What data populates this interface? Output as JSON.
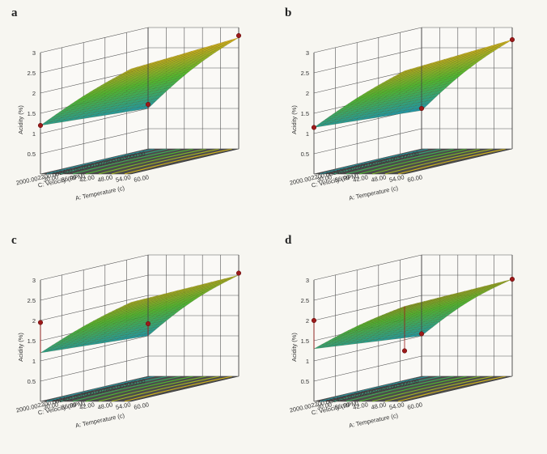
{
  "chart_data": [
    {
      "type": "surface3d",
      "panel_label": "a",
      "zlabel": "Acidity (%)",
      "xlabel": "A: Temperature (c)",
      "ylabel": "C: Velocity (RPM)",
      "x_ticks": [
        "30.00",
        "36.00",
        "42.00",
        "48.00",
        "54.00",
        "60.00"
      ],
      "y_ticks": [
        "2000.00",
        "2200.00",
        "2400.00",
        "2600.00",
        "2800.00",
        "3000.00"
      ],
      "z_ticks": [
        "0.5",
        "1",
        "1.5",
        "2",
        "2.5",
        "3"
      ],
      "xlim": [
        30,
        60
      ],
      "ylim": [
        2000,
        3000
      ],
      "zlim": [
        0,
        3
      ],
      "surface_corners": {
        "x30_y3000": 1.0,
        "x60_y3000": 2.75,
        "x30_y2000": 1.2,
        "x60_y2000": 2.6
      },
      "design_points": [
        {
          "x": 30,
          "y": 3000,
          "z": 1.1
        },
        {
          "x": 60,
          "y": 3000,
          "z": 2.8
        },
        {
          "x": 30,
          "y": 2000,
          "z": 1.2
        }
      ]
    },
    {
      "type": "surface3d",
      "panel_label": "b",
      "zlabel": "Acidity (%)",
      "xlabel": "A: Temperature (c)",
      "ylabel": "C: Velocity (RPM)",
      "x_ticks": [
        "30.00",
        "36.00",
        "42.00",
        "48.00",
        "54.00",
        "60.00"
      ],
      "y_ticks": [
        "2000.00",
        "2200.00",
        "2400.00",
        "2600.00",
        "2800.00",
        "3000.00"
      ],
      "z_ticks": [
        "0.5",
        "1",
        "1.5",
        "2",
        "2.5",
        "3"
      ],
      "xlim": [
        30,
        60
      ],
      "ylim": [
        2000,
        3000
      ],
      "zlim": [
        0,
        3
      ],
      "surface_corners": {
        "x30_y3000": 0.95,
        "x60_y3000": 2.7,
        "x30_y2000": 1.15,
        "x60_y2000": 2.55
      },
      "design_points": [
        {
          "x": 30,
          "y": 3000,
          "z": 1.0
        },
        {
          "x": 60,
          "y": 3000,
          "z": 2.7
        },
        {
          "x": 30,
          "y": 2000,
          "z": 1.15
        }
      ]
    },
    {
      "type": "surface3d",
      "panel_label": "c",
      "zlabel": "Acidity (%)",
      "xlabel": "A: Temperature (c)",
      "ylabel": "C: Velocity (RPM)",
      "x_ticks": [
        "30.00",
        "36.00",
        "42.00",
        "48.00",
        "54.00",
        "60.00"
      ],
      "y_ticks": [
        "2000.00",
        "2200.00",
        "2400.00",
        "2600.00",
        "2800.00",
        "3000.00"
      ],
      "z_ticks": [
        "0.5",
        "1",
        "1.5",
        "2",
        "2.5",
        "3"
      ],
      "xlim": [
        30,
        60
      ],
      "ylim": [
        2000,
        3000
      ],
      "zlim": [
        0,
        3
      ],
      "surface_corners": {
        "x30_y3000": 1.0,
        "x60_y3000": 2.5,
        "x30_y2000": 1.2,
        "x60_y2000": 2.45
      },
      "design_points": [
        {
          "x": 30,
          "y": 3000,
          "z": 1.3
        },
        {
          "x": 60,
          "y": 3000,
          "z": 2.55
        },
        {
          "x": 30,
          "y": 2000,
          "z": 1.95
        }
      ]
    },
    {
      "type": "surface3d",
      "panel_label": "d",
      "zlabel": "Acidity (%)",
      "xlabel": "A: Temperature (c)",
      "ylabel": "C: Velocity (RPM)",
      "x_ticks": [
        "30.00",
        "36.00",
        "42.00",
        "48.00",
        "54.00",
        "60.00"
      ],
      "y_ticks": [
        "2000.00",
        "2200.00",
        "2400.00",
        "2600.00",
        "2800.00",
        "3000.00"
      ],
      "z_ticks": [
        "0.5",
        "1",
        "1.5",
        "2",
        "2.5",
        "3"
      ],
      "xlim": [
        30,
        60
      ],
      "ylim": [
        2000,
        3000
      ],
      "zlim": [
        0,
        3
      ],
      "surface_corners": {
        "x30_y3000": 1.0,
        "x60_y3000": 2.4,
        "x30_y2000": 1.3,
        "x60_y2000": 2.35
      },
      "design_points": [
        {
          "x": 30,
          "y": 3000,
          "z": 1.05
        },
        {
          "x": 60,
          "y": 3000,
          "z": 2.4
        },
        {
          "x": 30,
          "y": 2000,
          "z": 2.0
        },
        {
          "x": 60,
          "y": 2000,
          "z": 1.25
        }
      ]
    }
  ],
  "colors": {
    "surface_low": "#1e8fb0",
    "surface_mid": "#4fb830",
    "surface_high": "#e8b418",
    "floor": "#4c4c4c",
    "design_point": "#9c1a1a"
  }
}
